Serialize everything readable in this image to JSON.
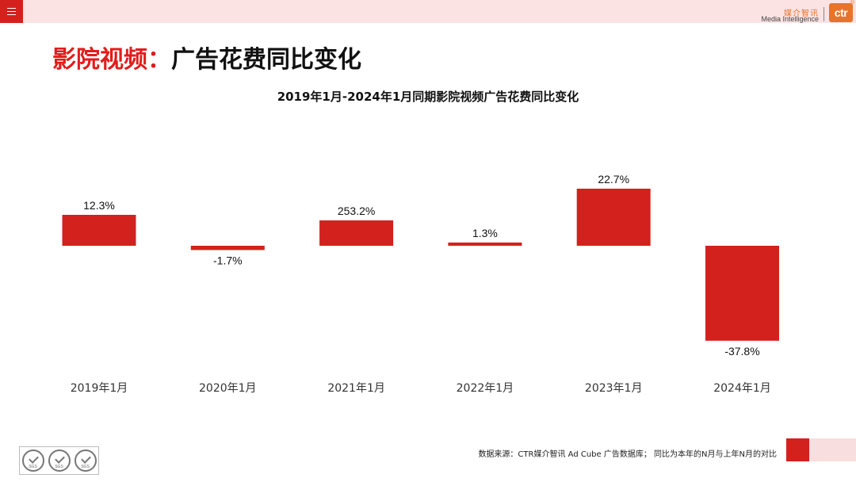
{
  "header": {
    "brand_cn": "媒介智讯",
    "brand_en": "Media Intelligence",
    "logo_text": "ctr",
    "logo_mark": "®"
  },
  "page_title": {
    "part1": "影院视频：",
    "part2": "广告花费同比变化"
  },
  "chart_data": {
    "type": "bar",
    "title": "2019年1月-2024年1月同期影院视频广告花费同比变化",
    "categories": [
      "2019年1月",
      "2020年1月",
      "2021年1月",
      "2022年1月",
      "2023年1月",
      "2024年1月"
    ],
    "values": [
      12.3,
      -1.7,
      253.2,
      1.3,
      22.7,
      -37.8
    ],
    "data_labels": [
      "12.3%",
      "-1.7%",
      "253.2%",
      "1.3%",
      "22.7%",
      "-37.8%"
    ],
    "unit": "%",
    "bar_color": "#d3211e",
    "grid": false,
    "axis_break_note": "the 253.2% bar is drawn shortened in the original"
  },
  "footer": {
    "source": "数据来源：CTR媒介智讯 Ad Cube 广告数据库； 同比为本年的N月与上年N月的对比",
    "sgs_label": "SGS"
  },
  "colors": {
    "accent_red": "#d3211e",
    "title_red": "#e21c1c",
    "header_pink": "#fbe3e3",
    "brand_orange": "#e8732a"
  }
}
